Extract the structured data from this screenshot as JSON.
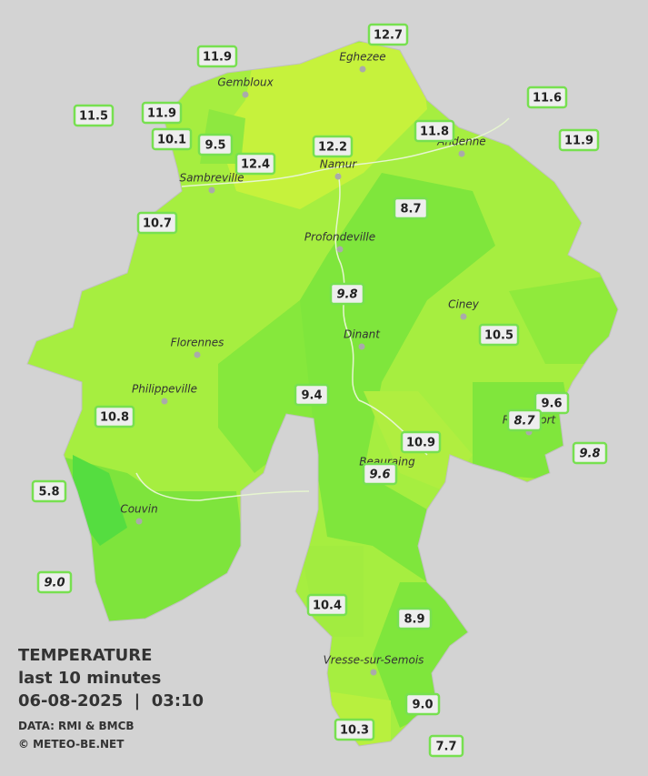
{
  "legend": {
    "title": "TEMPERATURE",
    "subtitle": "last 10 minutes",
    "datetime": "06-08-2025  |  03:10",
    "source": "DATA: RMI & BMCB",
    "copyright": "© METEO-BE.NET"
  },
  "cities": [
    "Eghezee",
    "Gembloux",
    "Andenne",
    "Namur",
    "Sambreville",
    "Profondeville",
    "Ciney",
    "Dinant",
    "Florennes",
    "Philippeville",
    "Beauraing",
    "Rochefort",
    "Couvin",
    "Vresse-sur-Semois"
  ],
  "stations": [
    {
      "value": "12.7"
    },
    {
      "value": "11.9"
    },
    {
      "value": "11.5"
    },
    {
      "value": "11.9"
    },
    {
      "value": "10.1"
    },
    {
      "value": "9.5"
    },
    {
      "value": "12.4"
    },
    {
      "value": "12.2"
    },
    {
      "value": "11.8"
    },
    {
      "value": "11.6"
    },
    {
      "value": "11.9"
    },
    {
      "value": "10.7"
    },
    {
      "value": "8.7"
    },
    {
      "value": "9.8",
      "italic": true
    },
    {
      "value": "10.5"
    },
    {
      "value": "9.4"
    },
    {
      "value": "10.8"
    },
    {
      "value": "9.6"
    },
    {
      "value": "8.7",
      "italic": true
    },
    {
      "value": "10.9"
    },
    {
      "value": "9.6",
      "italic": true
    },
    {
      "value": "9.8",
      "italic": true
    },
    {
      "value": "5.8"
    },
    {
      "value": "9.0",
      "italic": true
    },
    {
      "value": "10.4"
    },
    {
      "value": "8.9"
    },
    {
      "value": "9.0"
    },
    {
      "value": "10.3"
    },
    {
      "value": "7.7"
    }
  ]
}
